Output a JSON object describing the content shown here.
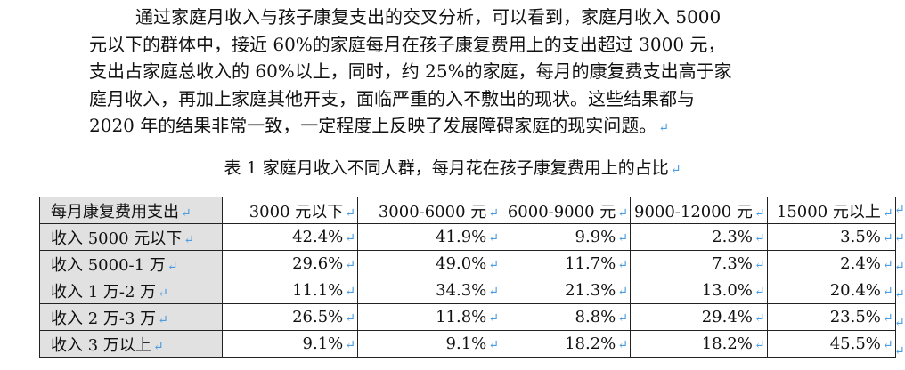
{
  "paragraph": {
    "lines": [
      "通过家庭月收入与孩子康复支出的交叉分析，可以看到，家庭月收入 5000",
      "元以下的群体中，接近 60%的家庭每月在孩子康复费用上的支出超过 3000 元，",
      "支出占家庭总收入的 60%以上，同时，约 25%的家庭，每月的康复费支出高于家",
      "庭月收入，再加上家庭其他开支，面临严重的入不敷出的现状。这些结果都与",
      "2020 年的结果非常一致，一定程度上反映了发展障碍家庭的现实问题。"
    ]
  },
  "paragraph_mark": "↵",
  "caption": "表 1 家庭月收入不同人群，每月花在孩子康复费用上的占比",
  "table": {
    "header": [
      "每月康复费用支出",
      "3000 元以下",
      "3000-6000 元",
      "6000-9000 元",
      "9000-12000 元",
      "15000 元以上"
    ],
    "rows": [
      {
        "label": "收入 5000 元以下",
        "values": [
          "42.4%",
          "41.9%",
          "9.9%",
          "2.3%",
          "3.5%"
        ]
      },
      {
        "label": "收入 5000-1 万",
        "values": [
          "29.6%",
          "49.0%",
          "11.7%",
          "7.3%",
          "2.4%"
        ]
      },
      {
        "label": "收入 1 万-2 万",
        "values": [
          "11.1%",
          "34.3%",
          "21.3%",
          "13.0%",
          "20.4%"
        ]
      },
      {
        "label": "收入 2 万-3 万",
        "values": [
          "26.5%",
          "11.8%",
          "8.8%",
          "29.4%",
          "23.5%"
        ]
      },
      {
        "label": "收入 3 万以上",
        "values": [
          "9.1%",
          "9.1%",
          "18.2%",
          "18.2%",
          "45.5%"
        ]
      }
    ]
  },
  "colors": {
    "header_fill": "#e1e1e1",
    "paragraph_mark": "#4a9be0"
  }
}
